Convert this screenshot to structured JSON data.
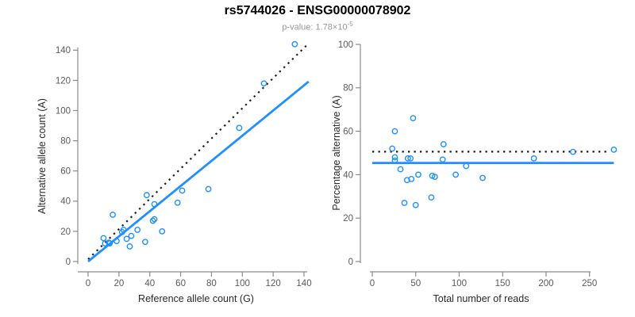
{
  "header": {
    "title": "rs5744026 - ENSG00000078902",
    "subtitle_base": "p-value: 1.78×10",
    "subtitle_exp": "-5"
  },
  "colors": {
    "point": "#1E90FF",
    "fit_line": "#1E90FF",
    "dotted_line": "#1a1a1a",
    "axis": "#8c8c8c",
    "tick_label": "#5a5a5a",
    "axis_title": "#2b2b2b",
    "title": "#000000",
    "subtitle": "#979797"
  },
  "chart_data": [
    {
      "type": "scatter",
      "title": "",
      "xlabel": "Reference allele count (G)",
      "ylabel": "Alternative allele count (A)",
      "xlim": [
        0,
        140
      ],
      "ylim": [
        0,
        140
      ],
      "xticks": [
        0,
        20,
        40,
        60,
        80,
        100,
        120,
        140
      ],
      "yticks": [
        0,
        20,
        40,
        60,
        80,
        100,
        120,
        140
      ],
      "grid": false,
      "legend": "none",
      "points": [
        [
          10,
          15.5
        ],
        [
          11,
          12
        ],
        [
          13.5,
          12.5
        ],
        [
          14,
          12
        ],
        [
          16,
          31
        ],
        [
          18.5,
          13.5
        ],
        [
          22,
          19.5
        ],
        [
          23,
          21
        ],
        [
          25,
          15
        ],
        [
          27,
          10
        ],
        [
          28,
          17
        ],
        [
          32,
          21
        ],
        [
          37,
          13
        ],
        [
          38,
          44
        ],
        [
          42,
          27
        ],
        [
          43,
          28
        ],
        [
          43,
          38
        ],
        [
          48,
          20
        ],
        [
          58,
          39
        ],
        [
          61,
          47
        ],
        [
          78,
          48
        ],
        [
          98,
          88.5
        ],
        [
          114,
          118
        ],
        [
          134,
          144
        ]
      ],
      "lines": [
        {
          "name": "identity",
          "style": "dotted",
          "color": "#1a1a1a",
          "x1": 0,
          "y1": 1.5,
          "x2": 142,
          "y2": 143.5
        },
        {
          "name": "fit",
          "style": "solid",
          "color": "#1E90FF",
          "x1": 0,
          "y1": 0,
          "x2": 143,
          "y2": 119.2
        }
      ]
    },
    {
      "type": "scatter",
      "title": "",
      "xlabel": "Total number of reads",
      "ylabel": "Percentage alternative (A)",
      "xlim": [
        0,
        250
      ],
      "ylim": [
        0,
        100
      ],
      "xticks": [
        0,
        50,
        100,
        150,
        200,
        250
      ],
      "yticks": [
        0,
        20,
        40,
        60,
        80,
        100
      ],
      "grid": false,
      "legend": "none",
      "points": [
        [
          23,
          52
        ],
        [
          26,
          60
        ],
        [
          26,
          48
        ],
        [
          26,
          46.5
        ],
        [
          32.5,
          42.5
        ],
        [
          37,
          27
        ],
        [
          40,
          37.5
        ],
        [
          41,
          47.5
        ],
        [
          44,
          47.5
        ],
        [
          45,
          38
        ],
        [
          47,
          66
        ],
        [
          50,
          26
        ],
        [
          53,
          40
        ],
        [
          68,
          29.5
        ],
        [
          69,
          39.5
        ],
        [
          72,
          39
        ],
        [
          81,
          47
        ],
        [
          82,
          54
        ],
        [
          96,
          40
        ],
        [
          108,
          44
        ],
        [
          127,
          38.5
        ],
        [
          186,
          47.5
        ],
        [
          231,
          50.5
        ],
        [
          278,
          51.5
        ]
      ],
      "lines": [
        {
          "name": "expected",
          "style": "dotted",
          "color": "#1a1a1a",
          "x1": 0,
          "y1": 50.6,
          "x2": 273,
          "y2": 50.6
        },
        {
          "name": "fit",
          "style": "solid",
          "color": "#1E90FF",
          "x1": 0,
          "y1": 45.4,
          "x2": 278,
          "y2": 45.4
        }
      ]
    }
  ]
}
